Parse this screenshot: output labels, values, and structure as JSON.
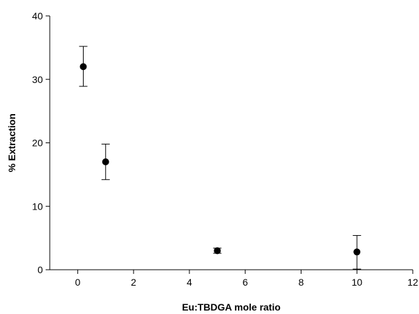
{
  "chart_data": {
    "type": "scatter",
    "xlabel": "Eu:TBDGA mole ratio",
    "ylabel": "% Extraction",
    "xlim": [
      -1,
      12
    ],
    "ylim": [
      0,
      40
    ],
    "xticks": [
      0,
      2,
      4,
      6,
      8,
      10,
      12
    ],
    "yticks": [
      0,
      10,
      20,
      30,
      40
    ],
    "grid": false,
    "legend": "none",
    "series": [
      {
        "points": [
          {
            "x": 0.2,
            "y": 32.0,
            "err_low": 28.9,
            "err_high": 35.2
          },
          {
            "x": 1.0,
            "y": 17.0,
            "err_low": 14.2,
            "err_high": 19.8
          },
          {
            "x": 5.0,
            "y": 3.0,
            "err_low": 2.6,
            "err_high": 3.4
          },
          {
            "x": 10.0,
            "y": 2.8,
            "err_low": 0.1,
            "err_high": 5.4
          }
        ],
        "color": "#000000",
        "marker": "circle"
      }
    ]
  }
}
